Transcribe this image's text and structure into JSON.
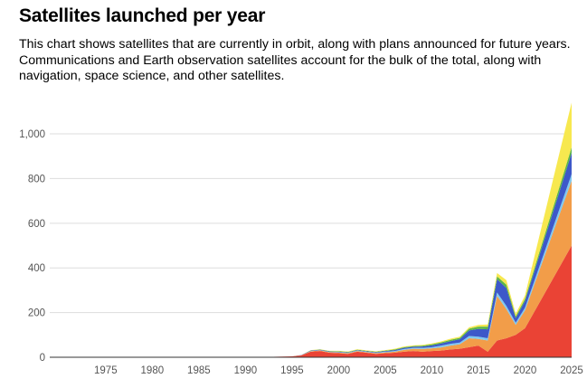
{
  "title": "Satellites launched per year",
  "subtitle": "This chart shows satellites that are currently in orbit, along with plans announced for future years. Communications and Earth observation satellites account for the bulk of the total, along with navigation, space science, and other satellites.",
  "colors": {
    "communications": "#ea4335",
    "earth_observation": "#f29d49",
    "navigation": "#7fc8f0",
    "space_science": "#3d58c9",
    "technology": "#5bb548",
    "other": "#f7e84f",
    "grid": "#dddddd",
    "axis": "#333333",
    "tick_text": "#555555"
  },
  "chart_data": {
    "type": "area",
    "stacked": true,
    "title": "Satellites launched per year",
    "xlabel": "",
    "ylabel": "",
    "xlim": [
      1969,
      2025
    ],
    "ylim": [
      0,
      1150
    ],
    "grid": true,
    "legend": "none",
    "x_ticks": [
      1975,
      1980,
      1985,
      1990,
      1995,
      2000,
      2005,
      2010,
      2015,
      2020,
      2025
    ],
    "x_tick_labels": [
      "1975",
      "1980",
      "1985",
      "1990",
      "1995",
      "2000",
      "2005",
      "2010",
      "2015",
      "2020",
      "2025"
    ],
    "y_ticks": [
      0,
      200,
      400,
      600,
      800,
      1000
    ],
    "y_tick_labels": [
      "0",
      "200",
      "400",
      "600",
      "800",
      "1,000"
    ],
    "x": [
      1969,
      1970,
      1971,
      1972,
      1973,
      1974,
      1975,
      1976,
      1977,
      1978,
      1979,
      1980,
      1981,
      1982,
      1983,
      1984,
      1985,
      1986,
      1987,
      1988,
      1989,
      1990,
      1991,
      1992,
      1993,
      1994,
      1995,
      1996,
      1997,
      1998,
      1999,
      2000,
      2001,
      2002,
      2003,
      2004,
      2005,
      2006,
      2007,
      2008,
      2009,
      2010,
      2011,
      2012,
      2013,
      2014,
      2015,
      2016,
      2017,
      2018,
      2019,
      2020,
      2025
    ],
    "series": [
      {
        "key": "communications",
        "values": [
          0,
          0,
          0,
          0,
          0,
          0,
          0,
          0,
          1,
          1,
          1,
          1,
          1,
          1,
          1,
          1,
          1,
          1,
          1,
          1,
          1,
          1,
          1,
          1,
          2,
          3,
          4,
          8,
          25,
          28,
          20,
          18,
          15,
          25,
          20,
          15,
          18,
          20,
          25,
          28,
          25,
          28,
          30,
          35,
          38,
          45,
          52,
          25,
          75,
          85,
          100,
          130,
          500
        ]
      },
      {
        "key": "earth_observation",
        "values": [
          0,
          0,
          0,
          0,
          0,
          0,
          0,
          0,
          0,
          0,
          0,
          0,
          0,
          0,
          0,
          0,
          0,
          0,
          0,
          0,
          0,
          0,
          0,
          0,
          0,
          0,
          0,
          1,
          2,
          3,
          3,
          3,
          3,
          3,
          3,
          3,
          4,
          5,
          8,
          10,
          12,
          12,
          14,
          17,
          20,
          40,
          30,
          50,
          200,
          130,
          45,
          80,
          290
        ]
      },
      {
        "key": "navigation",
        "values": [
          0,
          0,
          0,
          0,
          0,
          0,
          0,
          0,
          0,
          0,
          0,
          0,
          0,
          0,
          0,
          0,
          0,
          0,
          0,
          0,
          0,
          0,
          0,
          0,
          0,
          0,
          0,
          0,
          1,
          1,
          1,
          2,
          2,
          2,
          2,
          2,
          3,
          3,
          4,
          4,
          5,
          5,
          8,
          8,
          8,
          10,
          10,
          10,
          15,
          15,
          10,
          12,
          30
        ]
      },
      {
        "key": "space_science",
        "values": [
          0,
          0,
          0,
          0,
          0,
          0,
          0,
          0,
          0,
          0,
          0,
          0,
          0,
          0,
          0,
          0,
          0,
          0,
          0,
          0,
          0,
          0,
          0,
          0,
          0,
          0,
          0,
          1,
          2,
          2,
          2,
          2,
          2,
          2,
          2,
          3,
          3,
          4,
          5,
          5,
          6,
          8,
          10,
          12,
          15,
          25,
          35,
          40,
          60,
          80,
          20,
          30,
          95
        ]
      },
      {
        "key": "technology",
        "values": [
          0,
          0,
          0,
          0,
          0,
          0,
          0,
          0,
          0,
          0,
          0,
          0,
          0,
          0,
          0,
          0,
          0,
          0,
          0,
          0,
          0,
          0,
          0,
          0,
          0,
          0,
          0,
          0,
          1,
          1,
          2,
          2,
          2,
          2,
          2,
          2,
          2,
          3,
          3,
          3,
          4,
          5,
          5,
          6,
          6,
          8,
          10,
          12,
          12,
          15,
          8,
          10,
          25
        ]
      },
      {
        "key": "other",
        "values": [
          0,
          0,
          0,
          0,
          0,
          0,
          0,
          0,
          0,
          0,
          0,
          0,
          0,
          0,
          0,
          0,
          0,
          0,
          0,
          0,
          0,
          0,
          0,
          0,
          0,
          0,
          0,
          0,
          1,
          1,
          1,
          2,
          2,
          2,
          2,
          2,
          2,
          3,
          3,
          3,
          3,
          4,
          4,
          5,
          5,
          6,
          8,
          10,
          15,
          20,
          12,
          15,
          200
        ]
      }
    ]
  }
}
